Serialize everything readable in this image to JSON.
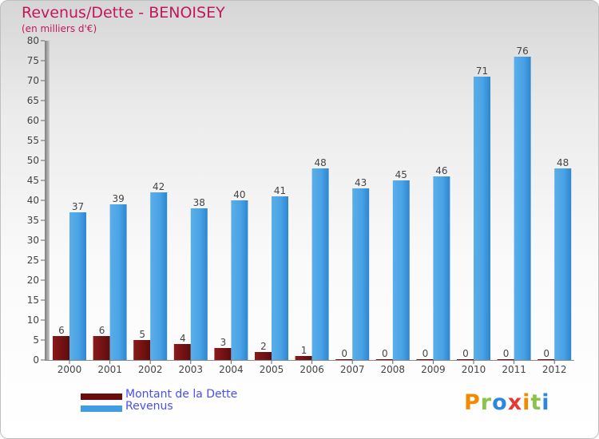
{
  "title": "Revenus/Dette - BENOISEY",
  "subtitle": "(en milliers d'€)",
  "logo": "Proxiti",
  "colors": {
    "dette": "#7a1010",
    "revenus": "#3f9de0",
    "title": "#c2185b",
    "legend": "#4a4ff0"
  },
  "chart_data": {
    "type": "bar",
    "title": "Revenus/Dette - BENOISEY",
    "ylabel": "(en milliers d'€)",
    "categories": [
      "2000",
      "2001",
      "2002",
      "2003",
      "2004",
      "2005",
      "2006",
      "2007",
      "2008",
      "2009",
      "2010",
      "2011",
      "2012"
    ],
    "series": [
      {
        "name": "Montant de la Dette",
        "values": [
          6,
          6,
          5,
          4,
          3,
          2,
          1,
          0,
          0,
          0,
          0,
          0,
          0
        ]
      },
      {
        "name": "Revenus",
        "values": [
          37,
          39,
          42,
          38,
          40,
          41,
          48,
          43,
          45,
          46,
          71,
          76,
          48
        ]
      }
    ],
    "ylim": [
      0,
      80
    ],
    "yticks": [
      0,
      5,
      10,
      15,
      20,
      25,
      30,
      35,
      40,
      45,
      50,
      55,
      60,
      65,
      70,
      75,
      80
    ],
    "grid": false,
    "legend": "bottom-left"
  }
}
